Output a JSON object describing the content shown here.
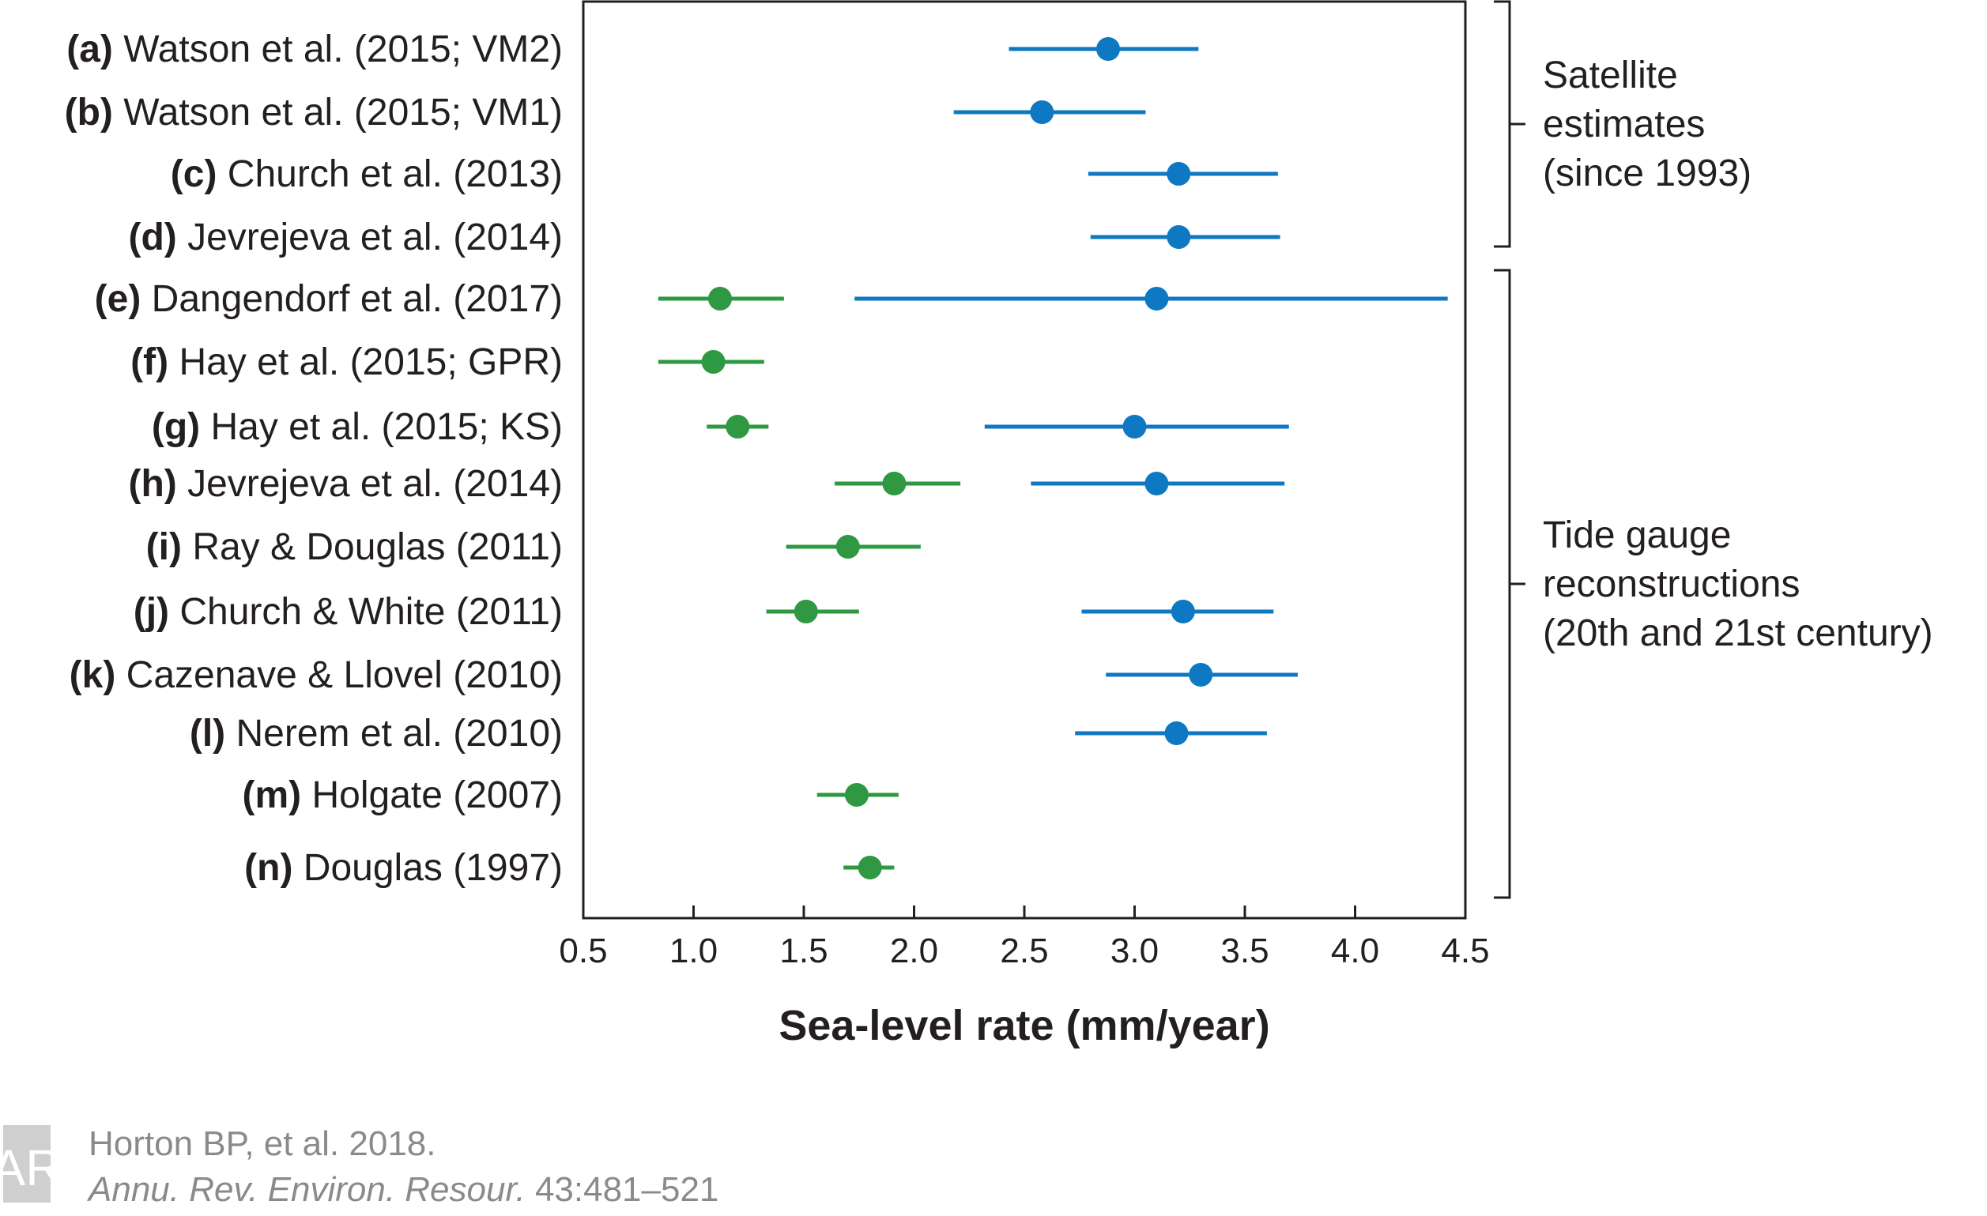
{
  "colors": {
    "satellite": "#0f78c2",
    "tide_gauge": "#2e9842",
    "axis": "#231f20",
    "credit": "#8a8a8a"
  },
  "chart_data": {
    "type": "scatter",
    "subtype": "forest-plot-with-error-bars",
    "xlabel": "Sea-level rate (mm/year)",
    "xlim": [
      0.5,
      4.5
    ],
    "xticks": [
      "0.5",
      "1.0",
      "1.5",
      "2.0",
      "2.5",
      "3.0",
      "3.5",
      "4.0",
      "4.5"
    ],
    "grid": false,
    "rows": [
      {
        "letter": "(a)",
        "label": "Watson et al. (2015; VM2)",
        "estimates": [
          {
            "group": "satellite",
            "value": 2.88,
            "low": 2.43,
            "high": 3.29
          }
        ]
      },
      {
        "letter": "(b)",
        "label": "Watson et al. (2015; VM1)",
        "estimates": [
          {
            "group": "satellite",
            "value": 2.58,
            "low": 2.18,
            "high": 3.05
          }
        ]
      },
      {
        "letter": "(c)",
        "label": "Church et al. (2013)",
        "estimates": [
          {
            "group": "satellite",
            "value": 3.2,
            "low": 2.79,
            "high": 3.65
          }
        ]
      },
      {
        "letter": "(d)",
        "label": "Jevrejeva et al. (2014)",
        "estimates": [
          {
            "group": "satellite",
            "value": 3.2,
            "low": 2.8,
            "high": 3.66
          }
        ]
      },
      {
        "letter": "(e)",
        "label": "Dangendorf et al. (2017)",
        "estimates": [
          {
            "group": "tide_gauge",
            "value": 1.12,
            "low": 0.84,
            "high": 1.41
          },
          {
            "group": "satellite",
            "value": 3.1,
            "low": 1.73,
            "high": 4.42
          }
        ]
      },
      {
        "letter": "(f)",
        "label": "Hay et al. (2015; GPR)",
        "estimates": [
          {
            "group": "tide_gauge",
            "value": 1.09,
            "low": 0.84,
            "high": 1.32
          }
        ]
      },
      {
        "letter": "(g)",
        "label": "Hay et al. (2015; KS)",
        "estimates": [
          {
            "group": "tide_gauge",
            "value": 1.2,
            "low": 1.06,
            "high": 1.34
          },
          {
            "group": "satellite",
            "value": 3.0,
            "low": 2.32,
            "high": 3.7
          }
        ]
      },
      {
        "letter": "(h)",
        "label": "Jevrejeva et al. (2014)",
        "estimates": [
          {
            "group": "tide_gauge",
            "value": 1.91,
            "low": 1.64,
            "high": 2.21
          },
          {
            "group": "satellite",
            "value": 3.1,
            "low": 2.53,
            "high": 3.68
          }
        ]
      },
      {
        "letter": "(i)",
        "label": "Ray & Douglas (2011)",
        "estimates": [
          {
            "group": "tide_gauge",
            "value": 1.7,
            "low": 1.42,
            "high": 2.03
          }
        ]
      },
      {
        "letter": "(j)",
        "label": "Church & White (2011)",
        "estimates": [
          {
            "group": "tide_gauge",
            "value": 1.51,
            "low": 1.33,
            "high": 1.75
          },
          {
            "group": "satellite",
            "value": 3.22,
            "low": 2.76,
            "high": 3.63
          }
        ]
      },
      {
        "letter": "(k)",
        "label": "Cazenave & Llovel (2010)",
        "estimates": [
          {
            "group": "satellite",
            "value": 3.3,
            "low": 2.87,
            "high": 3.74
          }
        ]
      },
      {
        "letter": "(l)",
        "label": "Nerem et al. (2010)",
        "estimates": [
          {
            "group": "satellite",
            "value": 3.19,
            "low": 2.73,
            "high": 3.6
          }
        ]
      },
      {
        "letter": "(m)",
        "label": "Holgate (2007)",
        "estimates": [
          {
            "group": "tide_gauge",
            "value": 1.74,
            "low": 1.56,
            "high": 1.93
          }
        ]
      },
      {
        "letter": "(n)",
        "label": "Douglas (1997)",
        "estimates": [
          {
            "group": "tide_gauge",
            "value": 1.8,
            "low": 1.68,
            "high": 1.91
          }
        ]
      }
    ],
    "groups": [
      {
        "name": "satellite",
        "lines": [
          "Satellite",
          "estimates",
          "(since 1993)"
        ],
        "rows": [
          "(a)",
          "(d)"
        ]
      },
      {
        "name": "tide_gauge",
        "lines": [
          "Tide gauge",
          "reconstructions",
          "(20th and 21st century)"
        ],
        "rows": [
          "(e)",
          "(n)"
        ]
      }
    ]
  },
  "credit": {
    "logo_text": "AR",
    "line1": "Horton BP, et al. 2018.",
    "line2_italic": "Annu. Rev. Environ. Resour.",
    "line2_rest": " 43:481–521"
  }
}
